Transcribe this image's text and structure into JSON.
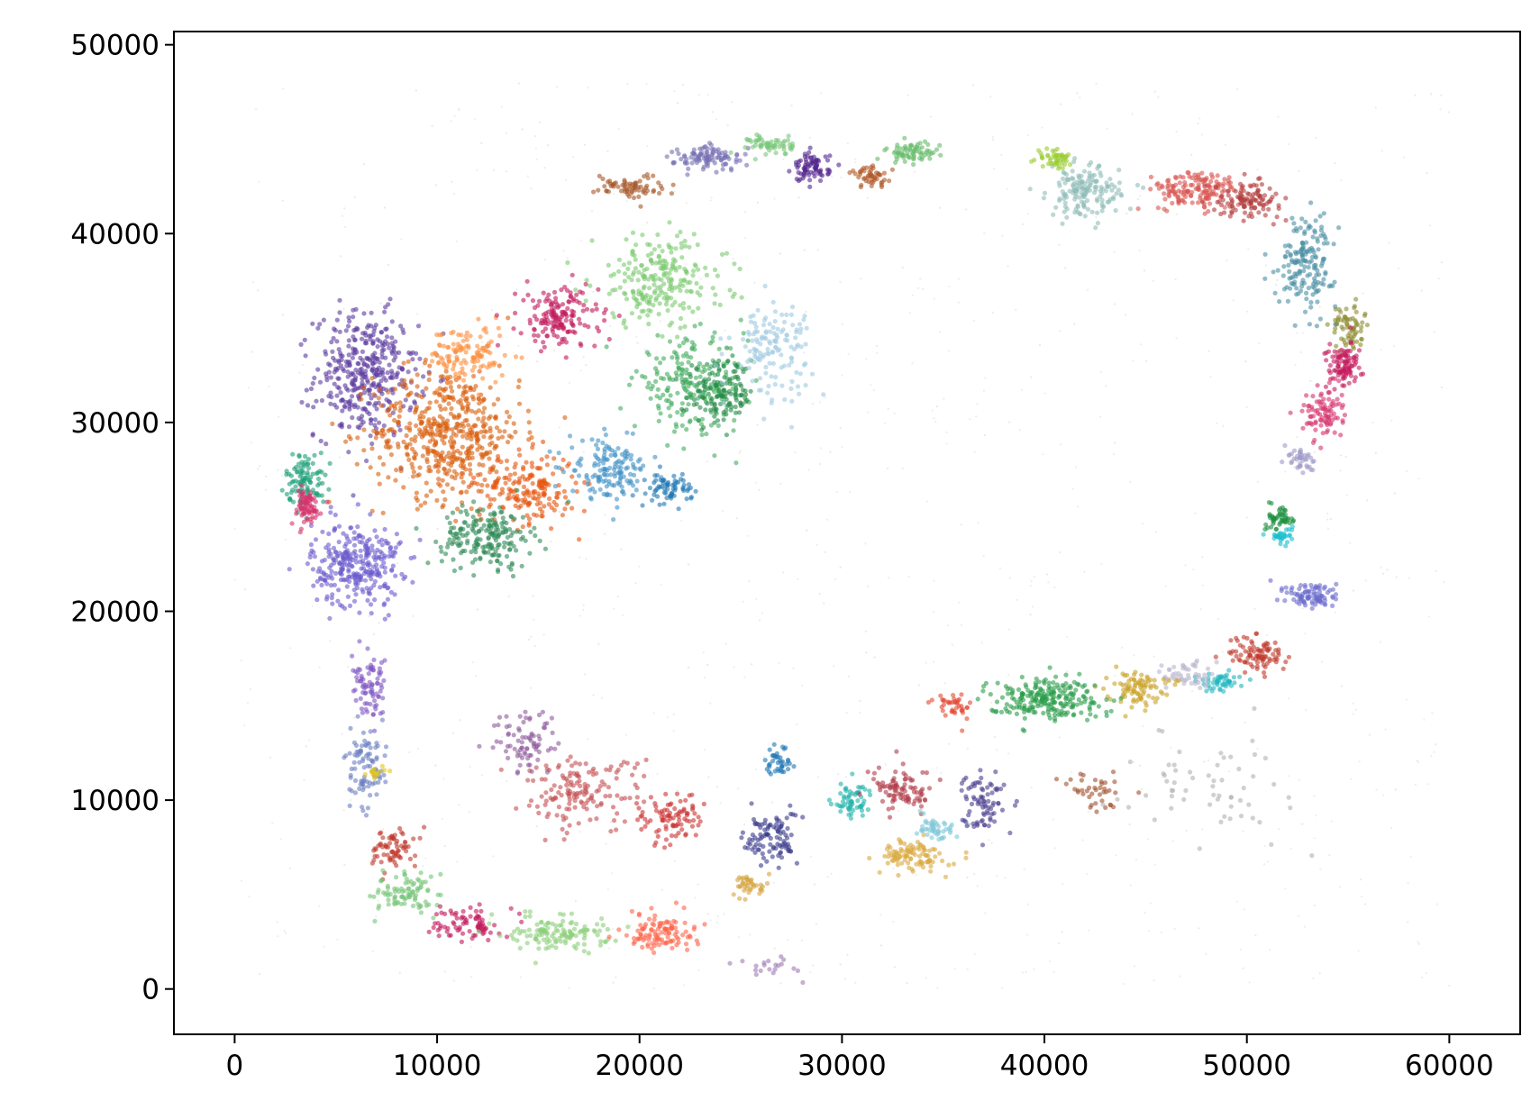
{
  "chart_data": {
    "type": "scatter",
    "title": "",
    "xlabel": "",
    "ylabel": "",
    "xlim": [
      -3000,
      63500
    ],
    "ylim": [
      -2400,
      50700
    ],
    "xticks": [
      0,
      10000,
      20000,
      30000,
      40000,
      50000,
      60000
    ],
    "yticks": [
      0,
      10000,
      20000,
      30000,
      40000,
      50000
    ],
    "xtick_labels": [
      "0",
      "10000",
      "20000",
      "30000",
      "40000",
      "50000",
      "60000"
    ],
    "ytick_labels": [
      "0",
      "10000",
      "20000",
      "30000",
      "40000",
      "50000"
    ],
    "grid": false,
    "legend": false,
    "background_range": {
      "x": [
        0,
        60000
      ],
      "y": [
        0,
        48000
      ]
    },
    "clusters": [
      {
        "color": "#5b3a9e",
        "center": [
          6500,
          32500
        ],
        "spread": [
          2300,
          3000
        ],
        "count": 380
      },
      {
        "color": "#d95f0e",
        "center": [
          10500,
          29500
        ],
        "spread": [
          3300,
          3200
        ],
        "count": 520
      },
      {
        "color": "#e6550d",
        "center": [
          14500,
          26500
        ],
        "spread": [
          2200,
          1700
        ],
        "count": 180
      },
      {
        "color": "#fd8d3c",
        "center": [
          11500,
          33500
        ],
        "spread": [
          1700,
          1500
        ],
        "count": 120
      },
      {
        "color": "#6a5acd",
        "center": [
          6000,
          22500
        ],
        "spread": [
          2000,
          2000
        ],
        "count": 300
      },
      {
        "color": "#1b9e77",
        "center": [
          3500,
          27000
        ],
        "spread": [
          900,
          1300
        ],
        "count": 100
      },
      {
        "color": "#d6336c",
        "center": [
          3500,
          25500
        ],
        "spread": [
          700,
          900
        ],
        "count": 80
      },
      {
        "color": "#2e8b57",
        "center": [
          12500,
          24000
        ],
        "spread": [
          2000,
          1500
        ],
        "count": 200
      },
      {
        "color": "#c2185b",
        "center": [
          16000,
          35500
        ],
        "spread": [
          1800,
          1500
        ],
        "count": 160
      },
      {
        "color": "#7bc96f",
        "center": [
          21000,
          37500
        ],
        "spread": [
          3000,
          2200
        ],
        "count": 240
      },
      {
        "color": "#41ab5d",
        "center": [
          22500,
          32000
        ],
        "spread": [
          2500,
          2200
        ],
        "count": 200
      },
      {
        "color": "#238b45",
        "center": [
          24000,
          31500
        ],
        "spread": [
          1500,
          1500
        ],
        "count": 140
      },
      {
        "color": "#4292c6",
        "center": [
          18500,
          27500
        ],
        "spread": [
          1800,
          1400
        ],
        "count": 150
      },
      {
        "color": "#1f78b4",
        "center": [
          21500,
          26500
        ],
        "spread": [
          1000,
          700
        ],
        "count": 70
      },
      {
        "color": "#9ecae1",
        "center": [
          26500,
          34000
        ],
        "spread": [
          1800,
          2200
        ],
        "count": 140
      },
      {
        "color": "#a65628",
        "center": [
          19500,
          42500
        ],
        "spread": [
          1500,
          600
        ],
        "count": 70
      },
      {
        "color": "#7570b3",
        "center": [
          23500,
          44000
        ],
        "spread": [
          1600,
          600
        ],
        "count": 100
      },
      {
        "color": "#78c679",
        "center": [
          26500,
          44700
        ],
        "spread": [
          1000,
          500
        ],
        "count": 60
      },
      {
        "color": "#54278f",
        "center": [
          28500,
          43500
        ],
        "spread": [
          800,
          700
        ],
        "count": 80
      },
      {
        "color": "#b15928",
        "center": [
          31500,
          43000
        ],
        "spread": [
          1000,
          500
        ],
        "count": 50
      },
      {
        "color": "#66bb6a",
        "center": [
          33500,
          44300
        ],
        "spread": [
          1200,
          500
        ],
        "count": 70
      },
      {
        "color": "#8fbcb9",
        "center": [
          42000,
          42200
        ],
        "spread": [
          1600,
          1200
        ],
        "count": 160
      },
      {
        "color": "#9acd32",
        "center": [
          40500,
          44000
        ],
        "spread": [
          800,
          500
        ],
        "count": 50
      },
      {
        "color": "#d9534f",
        "center": [
          47500,
          42300
        ],
        "spread": [
          2000,
          900
        ],
        "count": 150
      },
      {
        "color": "#b33c3c",
        "center": [
          50000,
          41800
        ],
        "spread": [
          1500,
          800
        ],
        "count": 110
      },
      {
        "color": "#4a90a4",
        "center": [
          53000,
          38500
        ],
        "spread": [
          1300,
          2200
        ],
        "count": 170
      },
      {
        "color": "#8c8c30",
        "center": [
          55000,
          35000
        ],
        "spread": [
          700,
          1200
        ],
        "count": 70
      },
      {
        "color": "#c51b5e",
        "center": [
          54800,
          33000
        ],
        "spread": [
          800,
          1100
        ],
        "count": 100
      },
      {
        "color": "#d6336c",
        "center": [
          53700,
          30500
        ],
        "spread": [
          900,
          1200
        ],
        "count": 90
      },
      {
        "color": "#9e9ac8",
        "center": [
          52700,
          28000
        ],
        "spread": [
          600,
          700
        ],
        "count": 40
      },
      {
        "color": "#1b8f3e",
        "center": [
          51700,
          25000
        ],
        "spread": [
          600,
          600
        ],
        "count": 50
      },
      {
        "color": "#17becf",
        "center": [
          51700,
          24000
        ],
        "spread": [
          500,
          400
        ],
        "count": 30
      },
      {
        "color": "#6a6acd",
        "center": [
          53300,
          20800
        ],
        "spread": [
          1200,
          700
        ],
        "count": 90
      },
      {
        "color": "#c0392b",
        "center": [
          50500,
          17700
        ],
        "spread": [
          1300,
          900
        ],
        "count": 90
      },
      {
        "color": "#1fb5c0",
        "center": [
          48800,
          16300
        ],
        "spread": [
          1000,
          500
        ],
        "count": 50
      },
      {
        "color": "#bbb5cf",
        "center": [
          47000,
          16600
        ],
        "spread": [
          1000,
          700
        ],
        "count": 50
      },
      {
        "color": "#c9a227",
        "center": [
          44500,
          16000
        ],
        "spread": [
          1300,
          800
        ],
        "count": 90
      },
      {
        "color": "#2a9d4a",
        "center": [
          40000,
          15400
        ],
        "spread": [
          2600,
          1000
        ],
        "count": 230
      },
      {
        "color": "#e34a33",
        "center": [
          35500,
          15000
        ],
        "spread": [
          800,
          700
        ],
        "count": 40
      },
      {
        "color": "#c44e52",
        "center": [
          17000,
          10500
        ],
        "spread": [
          2800,
          1700
        ],
        "count": 150
      },
      {
        "color": "#8e5a9b",
        "center": [
          14500,
          13000
        ],
        "spread": [
          1500,
          1500
        ],
        "count": 80
      },
      {
        "color": "#cc3333",
        "center": [
          21500,
          9000
        ],
        "spread": [
          1500,
          1300
        ],
        "count": 90
      },
      {
        "color": "#3a3a8c",
        "center": [
          26500,
          8000
        ],
        "spread": [
          1200,
          1300
        ],
        "count": 100
      },
      {
        "color": "#1f77b4",
        "center": [
          27000,
          12000
        ],
        "spread": [
          700,
          900
        ],
        "count": 40
      },
      {
        "color": "#d4a340",
        "center": [
          25500,
          5500
        ],
        "spread": [
          700,
          500
        ],
        "count": 40
      },
      {
        "color": "#20b2aa",
        "center": [
          30500,
          10000
        ],
        "spread": [
          1000,
          900
        ],
        "count": 60
      },
      {
        "color": "#b03a48",
        "center": [
          33000,
          10500
        ],
        "spread": [
          1300,
          1000
        ],
        "count": 90
      },
      {
        "color": "#d9a83e",
        "center": [
          33500,
          7000
        ],
        "spread": [
          1500,
          800
        ],
        "count": 100
      },
      {
        "color": "#7fc8d9",
        "center": [
          34500,
          8500
        ],
        "spread": [
          1000,
          500
        ],
        "count": 50
      },
      {
        "color": "#4b3f8f",
        "center": [
          37000,
          10000
        ],
        "spread": [
          900,
          1500
        ],
        "count": 80
      },
      {
        "color": "#a0522d",
        "center": [
          42500,
          10500
        ],
        "spread": [
          1500,
          1000
        ],
        "count": 40
      },
      {
        "color": "#b0b0b0",
        "center": [
          48000,
          11000
        ],
        "spread": [
          3500,
          2500
        ],
        "count": 60
      },
      {
        "color": "#7e57c2",
        "center": [
          6700,
          15800
        ],
        "spread": [
          800,
          1500
        ],
        "count": 80
      },
      {
        "color": "#6a7fc0",
        "center": [
          6500,
          11500
        ],
        "spread": [
          900,
          1800
        ],
        "count": 90
      },
      {
        "color": "#e3c417",
        "center": [
          7000,
          11500
        ],
        "spread": [
          500,
          400
        ],
        "count": 15
      },
      {
        "color": "#c0392b",
        "center": [
          7800,
          7500
        ],
        "spread": [
          1000,
          1000
        ],
        "count": 70
      },
      {
        "color": "#74c476",
        "center": [
          8500,
          5000
        ],
        "spread": [
          1500,
          1000
        ],
        "count": 90
      },
      {
        "color": "#c2185b",
        "center": [
          11500,
          3500
        ],
        "spread": [
          1500,
          800
        ],
        "count": 80
      },
      {
        "color": "#8ccf7a",
        "center": [
          16000,
          3000
        ],
        "spread": [
          2200,
          900
        ],
        "count": 130
      },
      {
        "color": "#ff6347",
        "center": [
          21000,
          3000
        ],
        "spread": [
          1600,
          900
        ],
        "count": 110
      },
      {
        "color": "#9e7bb5",
        "center": [
          26500,
          1200
        ],
        "spread": [
          1500,
          500
        ],
        "count": 20
      }
    ]
  }
}
